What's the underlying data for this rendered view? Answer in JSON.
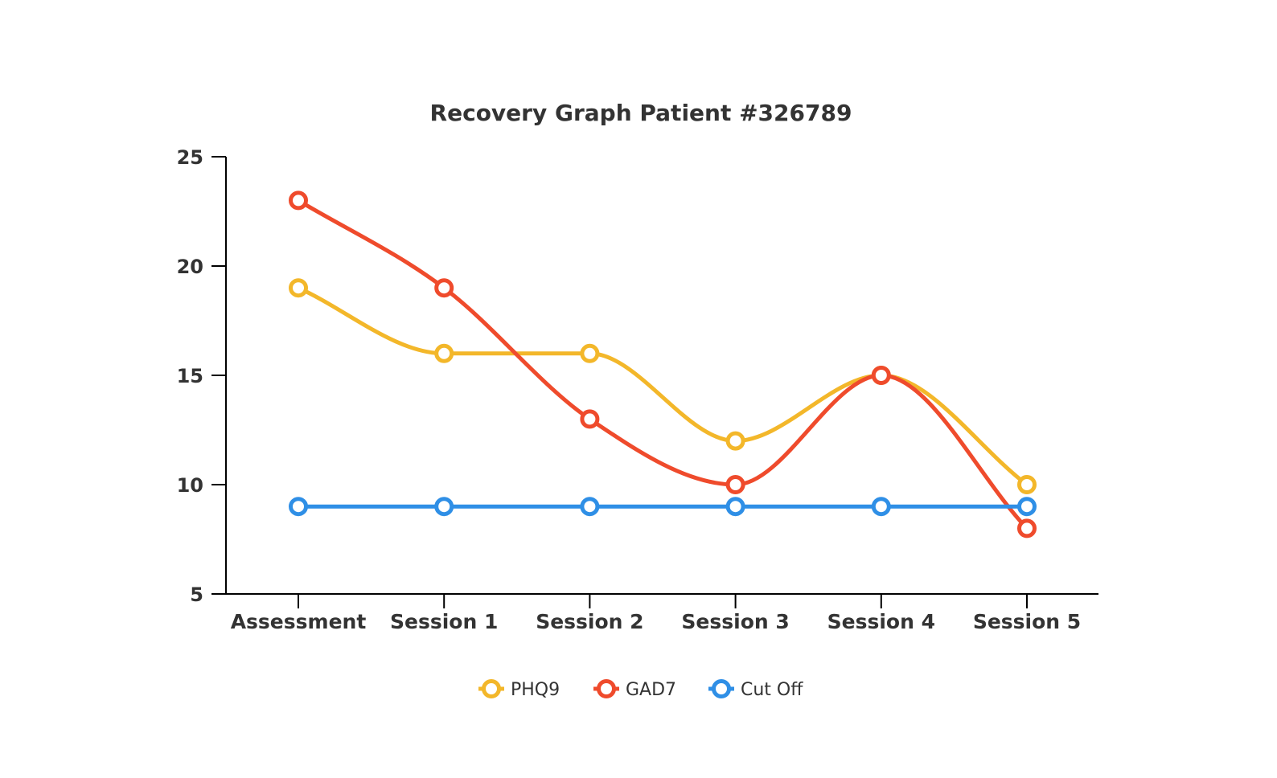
{
  "chart_data": {
    "type": "line",
    "title": "Recovery Graph Patient #326789",
    "xlabel": "",
    "ylabel": "",
    "categories": [
      "Assessment",
      "Session 1",
      "Session 2",
      "Session 3",
      "Session 4",
      "Session 5"
    ],
    "ylim": [
      5,
      25
    ],
    "yticks": [
      5,
      10,
      15,
      20,
      25
    ],
    "grid": false,
    "legend_position": "bottom",
    "series": [
      {
        "name": "PHQ9",
        "color": "#F3B72A",
        "values": [
          19,
          16,
          16,
          12,
          15,
          10
        ],
        "curve": "smooth"
      },
      {
        "name": "GAD7",
        "color": "#EF4B2C",
        "values": [
          23,
          19,
          13,
          10,
          15,
          8
        ],
        "curve": "smooth"
      },
      {
        "name": "Cut Off",
        "color": "#2F8FE6",
        "values": [
          9,
          9,
          9,
          9,
          9,
          9
        ],
        "curve": "straight"
      }
    ]
  }
}
